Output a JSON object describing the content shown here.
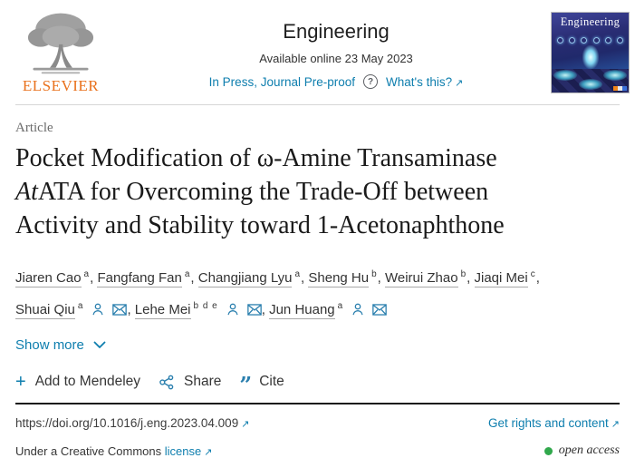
{
  "header": {
    "logo_text": "ELSEVIER",
    "journal_title": "Engineering",
    "availability": "Available online 23 May 2023",
    "in_press_link": "In Press, Journal Pre-proof",
    "whats_this_label": "What's this?",
    "cover_title": "Engineering"
  },
  "article": {
    "kicker": "Article",
    "title_line1": "Pocket Modification of ω-Amine Transaminase",
    "title_line2_italic": "At",
    "title_line2_rest": "ATA for Overcoming the Trade-Off between",
    "title_line3": "Activity and Stability toward 1-Acetonaphthone"
  },
  "authors": {
    "line1": [
      {
        "name": "Jiaren Cao",
        "sup": "a",
        "sep": ", ",
        "icons": []
      },
      {
        "name": "Fangfang Fan",
        "sup": "a",
        "sep": ", ",
        "icons": []
      },
      {
        "name": "Changjiang Lyu",
        "sup": "a",
        "sep": ", ",
        "icons": []
      },
      {
        "name": "Sheng Hu",
        "sup": "b",
        "sep": ", ",
        "icons": []
      },
      {
        "name": "Weirui Zhao",
        "sup": "b",
        "sep": ", ",
        "icons": []
      },
      {
        "name": "Jiaqi Mei",
        "sup": "c",
        "sep": ",",
        "icons": []
      }
    ],
    "line2": [
      {
        "name": "Shuai Qiu",
        "sup": "a",
        "sep": ", ",
        "icons": [
          "person",
          "envelope"
        ]
      },
      {
        "name": "Lehe Mei",
        "sup": "b d e",
        "sep": ", ",
        "icons": [
          "person",
          "envelope"
        ]
      },
      {
        "name": "Jun Huang",
        "sup": "a",
        "sep": "",
        "icons": [
          "person",
          "envelope"
        ]
      }
    ]
  },
  "show_more_label": "Show more",
  "actions": {
    "mendeley": "Add to Mendeley",
    "share": "Share",
    "cite": "Cite"
  },
  "footer": {
    "doi": "https://doi.org/10.1016/j.eng.2023.04.009",
    "rights_link": "Get rights and content",
    "license_prefix": "Under a Creative Commons",
    "license_link": "license",
    "open_access": "open access"
  },
  "icons": {
    "external_link": "↗",
    "plus": "+",
    "cite_glyph": "”",
    "question_mark": "?"
  },
  "colors": {
    "accent": "#0e7eae",
    "elsevier_orange": "#e9711c",
    "open_access_green": "#31a84c",
    "rule_dark": "#191919"
  }
}
